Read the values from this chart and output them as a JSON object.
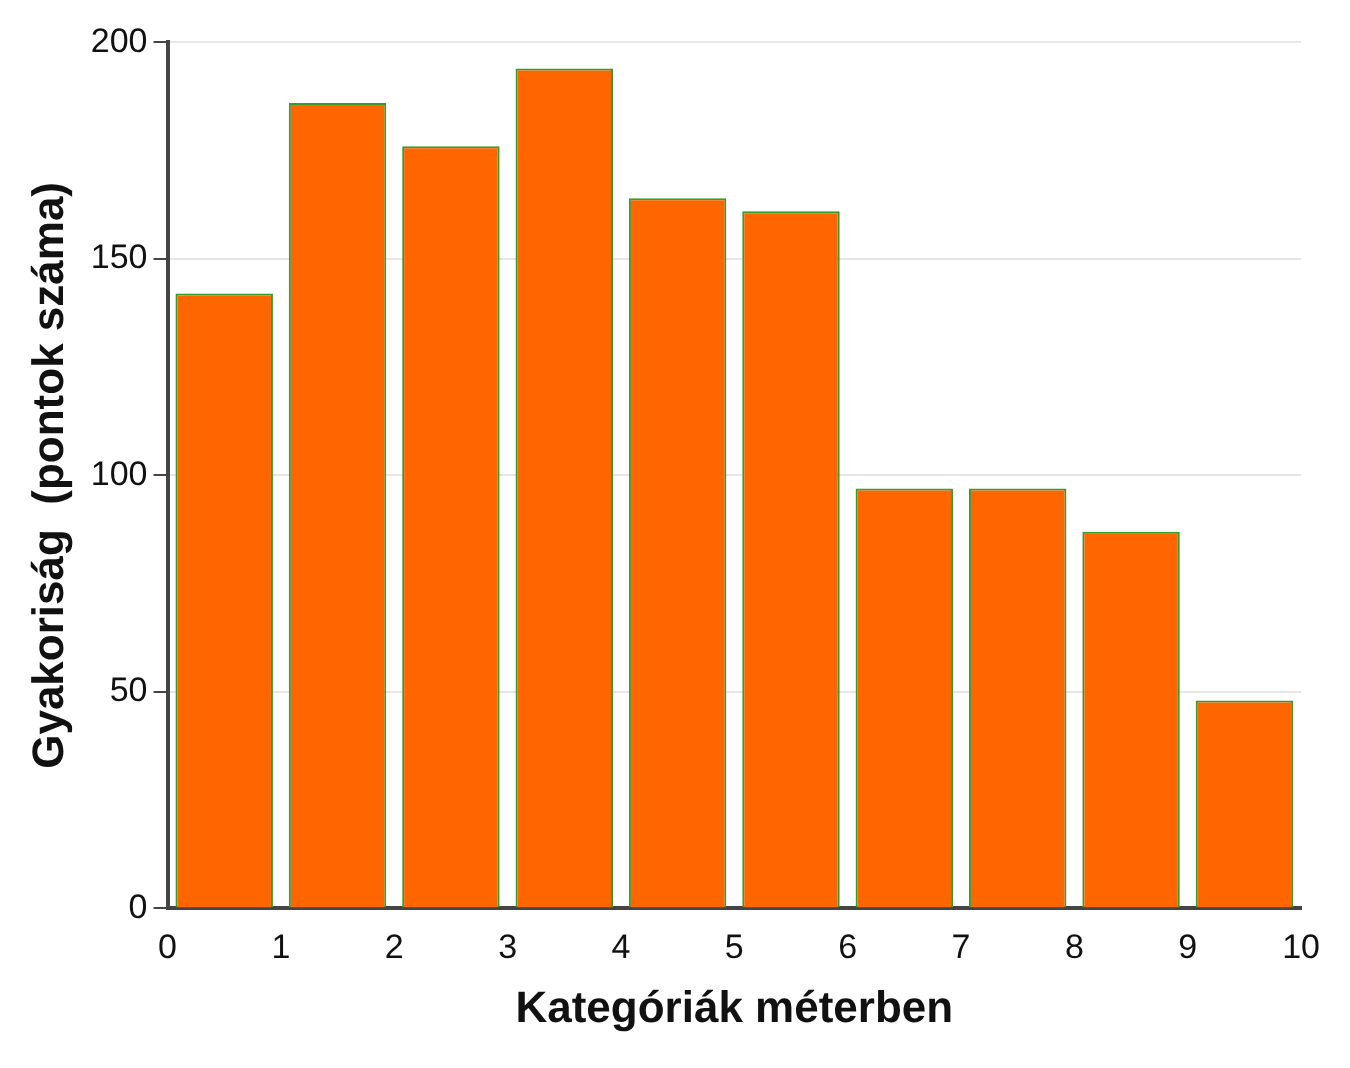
{
  "chart_data": {
    "type": "histogram",
    "xlabel": "Kategóriák méterben",
    "ylabel": "Gyakoriság  (pontok száma)",
    "bins": [
      0,
      1,
      2,
      3,
      4,
      5,
      6,
      7,
      8,
      9,
      10
    ],
    "values": [
      142,
      186,
      176,
      194,
      164,
      161,
      97,
      97,
      87,
      48
    ],
    "color": "#ff6600",
    "xlim": [
      0,
      10
    ],
    "xticks": [
      0,
      1,
      2,
      3,
      4,
      5,
      6,
      7,
      8,
      9,
      10
    ],
    "ylim": [
      0,
      200
    ],
    "yticks": [
      0,
      50,
      100,
      150,
      200
    ],
    "grid": "y",
    "legend": false
  }
}
